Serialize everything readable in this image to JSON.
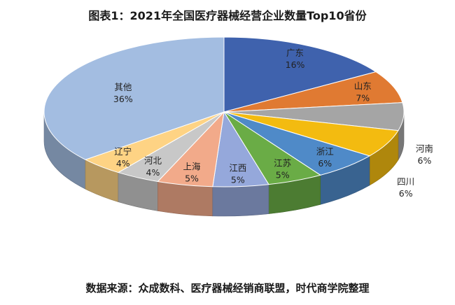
{
  "chart_data": {
    "type": "pie",
    "title": "图表1：2021年全国医疗器械经营企业数量Top10省份",
    "source": "数据来源：众成数科、医疗器械经销商联盟，时代商学院整理",
    "slices": [
      {
        "label": "广东",
        "value": 16,
        "display": "16%",
        "color": "#3f62ad"
      },
      {
        "label": "山东",
        "value": 7,
        "display": "7%",
        "color": "#e07a32"
      },
      {
        "label": "河南",
        "value": 6,
        "display": "6%",
        "color": "#a5a5a5"
      },
      {
        "label": "四川",
        "value": 6,
        "display": "6%",
        "color": "#f3bb10"
      },
      {
        "label": "浙江",
        "value": 6,
        "display": "6%",
        "color": "#4f8ac8"
      },
      {
        "label": "江苏",
        "value": 5,
        "display": "5%",
        "color": "#6aac46"
      },
      {
        "label": "江西",
        "value": 5,
        "display": "5%",
        "color": "#95a8db"
      },
      {
        "label": "上海",
        "value": 5,
        "display": "5%",
        "color": "#f2aa8a"
      },
      {
        "label": "河北",
        "value": 4,
        "display": "4%",
        "color": "#c8c8c8"
      },
      {
        "label": "辽宁",
        "value": 4,
        "display": "4%",
        "color": "#fed384"
      },
      {
        "label": "其他",
        "value": 36,
        "display": "36%",
        "color": "#a3bde1"
      }
    ]
  }
}
